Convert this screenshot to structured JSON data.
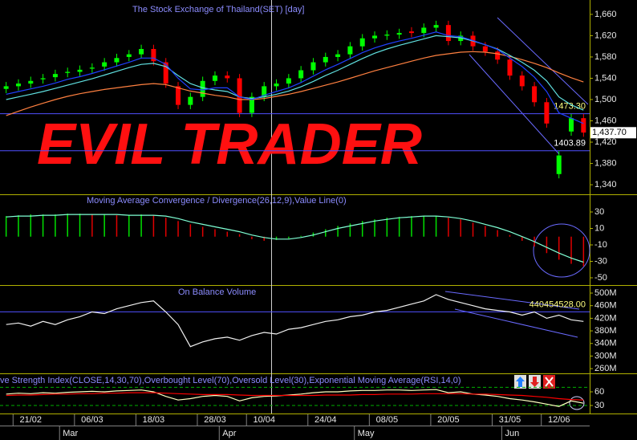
{
  "overlay_text": "EVIL TRADER",
  "chart_data": [
    {
      "type": "candlestick",
      "title": "The Stock Exchange of Thailand(SET) [day]",
      "up_color": "#00ff00",
      "down_color": "#ff0000",
      "open": [
        1520,
        1525,
        1530,
        1538,
        1542,
        1550,
        1552,
        1558,
        1562,
        1570,
        1580,
        1585,
        1595,
        1570,
        1525,
        1490,
        1505,
        1535,
        1545,
        1540,
        1475,
        1505,
        1525,
        1530,
        1540,
        1555,
        1570,
        1580,
        1585,
        1600,
        1615,
        1620,
        1622,
        1628,
        1625,
        1635,
        1640,
        1610,
        1620,
        1600,
        1590,
        1575,
        1545,
        1525,
        1495,
        1360,
        1440,
        1465
      ],
      "high": [
        1533,
        1538,
        1543,
        1548,
        1556,
        1560,
        1564,
        1568,
        1578,
        1586,
        1593,
        1603,
        1603,
        1578,
        1533,
        1513,
        1543,
        1553,
        1553,
        1548,
        1513,
        1533,
        1538,
        1548,
        1563,
        1578,
        1588,
        1593,
        1608,
        1623,
        1628,
        1630,
        1633,
        1636,
        1643,
        1648,
        1648,
        1628,
        1628,
        1608,
        1598,
        1583,
        1553,
        1533,
        1503,
        1403,
        1473,
        1473
      ],
      "low": [
        1512,
        1517,
        1522,
        1530,
        1534,
        1542,
        1544,
        1550,
        1554,
        1562,
        1572,
        1577,
        1564,
        1522,
        1482,
        1482,
        1497,
        1527,
        1532,
        1467,
        1467,
        1497,
        1517,
        1522,
        1532,
        1547,
        1562,
        1572,
        1577,
        1592,
        1607,
        1612,
        1614,
        1617,
        1617,
        1627,
        1602,
        1602,
        1592,
        1582,
        1567,
        1537,
        1517,
        1487,
        1447,
        1352,
        1432,
        1430
      ],
      "close": [
        1525,
        1530,
        1535,
        1540,
        1548,
        1552,
        1556,
        1560,
        1570,
        1578,
        1585,
        1595,
        1572,
        1530,
        1490,
        1505,
        1535,
        1545,
        1540,
        1475,
        1505,
        1525,
        1530,
        1540,
        1555,
        1570,
        1580,
        1585,
        1600,
        1615,
        1620,
        1622,
        1625,
        1625,
        1635,
        1640,
        1610,
        1620,
        1600,
        1590,
        1575,
        1545,
        1525,
        1495,
        1455,
        1395,
        1465,
        1438
      ],
      "series": [
        {
          "color": "#ff8040",
          "values": [
            1470,
            1478,
            1486,
            1493,
            1500,
            1506,
            1511,
            1515,
            1519,
            1522,
            1525,
            1528,
            1530,
            1528,
            1522,
            1516,
            1512,
            1508,
            1505,
            1500,
            1500,
            1502,
            1506,
            1510,
            1515,
            1521,
            1527,
            1533,
            1540,
            1547,
            1554,
            1560,
            1566,
            1572,
            1578,
            1583,
            1586,
            1589,
            1590,
            1589,
            1586,
            1581,
            1575,
            1568,
            1560,
            1550,
            1541,
            1533
          ]
        },
        {
          "color": "#60e0e0",
          "values": [
            1500,
            1505,
            1510,
            1515,
            1521,
            1527,
            1533,
            1539,
            1546,
            1553,
            1560,
            1566,
            1568,
            1562,
            1545,
            1530,
            1522,
            1518,
            1515,
            1505,
            1502,
            1505,
            1510,
            1516,
            1524,
            1534,
            1545,
            1555,
            1566,
            1577,
            1587,
            1595,
            1602,
            1608,
            1614,
            1620,
            1618,
            1616,
            1610,
            1603,
            1595,
            1583,
            1570,
            1555,
            1535,
            1505,
            1490,
            1480
          ]
        },
        {
          "color": "#2040ff",
          "values": [
            1510,
            1515,
            1520,
            1525,
            1531,
            1538,
            1543,
            1549,
            1556,
            1563,
            1570,
            1578,
            1578,
            1566,
            1540,
            1520,
            1518,
            1522,
            1522,
            1505,
            1500,
            1508,
            1515,
            1522,
            1532,
            1544,
            1556,
            1566,
            1577,
            1588,
            1597,
            1604,
            1610,
            1615,
            1621,
            1627,
            1620,
            1618,
            1611,
            1603,
            1594,
            1578,
            1562,
            1542,
            1515,
            1475,
            1465,
            1455
          ]
        }
      ],
      "hlines": [
        {
          "value": 1473.3,
          "label": "1473.30",
          "color": "#5050ff",
          "label_color": "#ffff80"
        },
        {
          "value": 1403.89,
          "label": "1403.89",
          "color": "#5050ff",
          "label_color": "#ffffff"
        }
      ],
      "last_value": {
        "value": 1437.7,
        "label": "1,437.70"
      },
      "ylim": [
        1322,
        1687
      ],
      "yticks": [
        {
          "value": 1340,
          "label": "1,340"
        },
        {
          "value": 1380,
          "label": "1,380"
        },
        {
          "value": 1420,
          "label": "1,420"
        },
        {
          "value": 1460,
          "label": "1,460"
        },
        {
          "value": 1500,
          "label": "1,500"
        },
        {
          "value": 1540,
          "label": "1,540"
        },
        {
          "value": 1580,
          "label": "1,580"
        },
        {
          "value": 1620,
          "label": "1,620"
        },
        {
          "value": 1660,
          "label": "1,660"
        }
      ]
    },
    {
      "type": "bar",
      "title": "Moving Average Convergence / Divergence(26,12,9),Value Line(0)",
      "up_color": "#00e000",
      "down_color": "#e00000",
      "values": [
        25,
        26,
        27,
        27,
        27,
        28,
        28,
        27,
        27,
        26,
        26,
        27,
        26,
        23,
        19,
        15,
        12,
        9,
        6,
        3,
        -3,
        -5,
        -4,
        -2,
        1,
        5,
        9,
        13,
        16,
        19,
        21,
        23,
        24,
        25,
        25,
        25,
        23,
        21,
        17,
        13,
        8,
        2,
        -5,
        -12,
        -20,
        -28,
        -33,
        -36
      ],
      "series": [
        {
          "color": "#7fffd4",
          "values": [
            24,
            25,
            25,
            26,
            26,
            27,
            27,
            27,
            27,
            27,
            26,
            26,
            26,
            25,
            22,
            18,
            15,
            12,
            9,
            6,
            2,
            -1,
            -3,
            -3,
            -1,
            2,
            6,
            10,
            13,
            16,
            19,
            21,
            23,
            24,
            25,
            25,
            24,
            22,
            19,
            15,
            11,
            6,
            0,
            -6,
            -13,
            -20,
            -26,
            -31
          ]
        }
      ],
      "ylim": [
        -58.8,
        50.5
      ],
      "yticks": [
        30,
        10,
        -10,
        -30,
        -50
      ]
    },
    {
      "type": "line",
      "title": "On Balance Volume",
      "series": [
        {
          "color": "#f0f0f0",
          "values": [
            400000000,
            405000000,
            395000000,
            410000000,
            400000000,
            415000000,
            425000000,
            440000000,
            435000000,
            450000000,
            460000000,
            470000000,
            475000000,
            440000000,
            400000000,
            330000000,
            345000000,
            355000000,
            360000000,
            350000000,
            365000000,
            375000000,
            370000000,
            385000000,
            390000000,
            400000000,
            410000000,
            415000000,
            425000000,
            430000000,
            440000000,
            445000000,
            455000000,
            465000000,
            475000000,
            495000000,
            480000000,
            470000000,
            460000000,
            450000000,
            445000000,
            440000000,
            430000000,
            440000000,
            420000000,
            430000000,
            415000000,
            410000000
          ]
        }
      ],
      "hlines": [
        {
          "value": 440454528,
          "label": "440454528.00",
          "color": "#5050ff",
          "label_color": "#ffff80"
        }
      ],
      "ylim": [
        245000000,
        523000000
      ],
      "yticks": [
        {
          "value": 260000000,
          "label": "260M"
        },
        {
          "value": 300000000,
          "label": "300M"
        },
        {
          "value": 340000000,
          "label": "340M"
        },
        {
          "value": 380000000,
          "label": "380M"
        },
        {
          "value": 420000000,
          "label": "420M"
        },
        {
          "value": 460000000,
          "label": "460M"
        },
        {
          "value": 500000000,
          "label": "500M"
        }
      ]
    },
    {
      "type": "line",
      "title": "ve Strength Index(CLOSE,14,30,70),Overbought Level(70),Oversold Level(30),Exponential Moving Average(RSI,14,0)",
      "series": [
        {
          "color": "#ffffc0",
          "values": [
            55,
            57,
            56,
            58,
            57,
            59,
            60,
            61,
            60,
            62,
            63,
            64,
            60,
            50,
            42,
            45,
            50,
            52,
            50,
            40,
            47,
            50,
            51,
            53,
            55,
            58,
            60,
            60,
            62,
            63,
            63,
            64,
            64,
            63,
            64,
            65,
            58,
            60,
            55,
            53,
            50,
            45,
            42,
            38,
            33,
            28,
            40,
            35
          ]
        },
        {
          "color": "#ff0000",
          "values": [
            52,
            53,
            53,
            54,
            55,
            55,
            56,
            56,
            57,
            57,
            58,
            58,
            58,
            57,
            56,
            55,
            54,
            54,
            54,
            53,
            52,
            52,
            52,
            52,
            52,
            52,
            53,
            53,
            53,
            54,
            54,
            55,
            55,
            55,
            56,
            56,
            56,
            56,
            55,
            55,
            54,
            53,
            52,
            50,
            48,
            45,
            43,
            42
          ]
        }
      ],
      "levels": [
        70,
        30
      ],
      "level_color": "#00b000",
      "ylim": [
        12.4,
        98.8
      ],
      "yticks": [
        30,
        60
      ],
      "categories": [
        null,
        null,
        "21/02",
        null,
        null,
        null,
        null,
        "06/03",
        null,
        null,
        null,
        null,
        "18/03",
        null,
        null,
        null,
        null,
        "28/03",
        null,
        null,
        null,
        "10/04",
        null,
        null,
        null,
        null,
        "24/04",
        null,
        null,
        null,
        null,
        "08/05",
        null,
        null,
        null,
        null,
        "20/05",
        null,
        null,
        null,
        null,
        "31/05",
        null,
        null,
        null,
        "12/06",
        null,
        null
      ],
      "months": [
        null,
        null,
        null,
        null,
        null,
        "Mar",
        null,
        null,
        null,
        null,
        null,
        null,
        null,
        null,
        null,
        null,
        null,
        null,
        "Apr",
        null,
        null,
        null,
        null,
        null,
        null,
        null,
        null,
        null,
        null,
        "May",
        null,
        null,
        null,
        null,
        null,
        null,
        null,
        null,
        null,
        null,
        null,
        "Jun",
        null,
        null,
        null,
        null,
        null,
        null
      ]
    }
  ]
}
